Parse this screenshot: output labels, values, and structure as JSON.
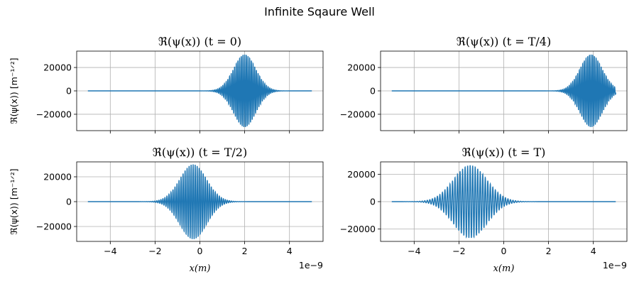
{
  "figure": {
    "suptitle": "Infinite Sqaure Well",
    "line_color": "#1f77b4",
    "grid_color": "#b0b0b0"
  },
  "chart_data": [
    {
      "type": "line",
      "title": "ℜ(ψ(x)) (t = 0)",
      "ylabel": "ℜ(ψ(x)) [m⁻¹ᐟ²]",
      "xlabel": "",
      "x_range": [
        -5e-09,
        5e-09
      ],
      "xlim": [
        -5.5e-09,
        5.5e-09
      ],
      "ylim": [
        -34000,
        34000
      ],
      "xticks": [
        -4e-09,
        -2e-09,
        0,
        2e-09,
        4e-09
      ],
      "xtick_labels": [
        "",
        "",
        "",
        "",
        ""
      ],
      "yticks": [
        -20000,
        0,
        20000
      ],
      "ytick_labels": [
        "−20000",
        "0",
        "20000"
      ],
      "offset_text": "",
      "grid": true,
      "wave": {
        "amplitude": 31000,
        "center": 2e-09,
        "sigma": 5e-10,
        "oscillations": 40
      }
    },
    {
      "type": "line",
      "title": "ℜ(ψ(x)) (t = T/4)",
      "ylabel": "",
      "xlabel": "",
      "x_range": [
        -5e-09,
        5e-09
      ],
      "xlim": [
        -5.5e-09,
        5.5e-09
      ],
      "ylim": [
        -34000,
        34000
      ],
      "xticks": [
        -4e-09,
        -2e-09,
        0,
        2e-09,
        4e-09
      ],
      "xtick_labels": [
        "",
        "",
        "",
        "",
        ""
      ],
      "yticks": [
        -20000,
        0,
        20000
      ],
      "ytick_labels": [
        "−20000",
        "0",
        "20000"
      ],
      "offset_text": "",
      "grid": true,
      "wave": {
        "amplitude": 31000,
        "center": 3.9e-09,
        "sigma": 5e-10,
        "oscillations": 40
      }
    },
    {
      "type": "line",
      "title": "ℜ(ψ(x)) (t = T/2)",
      "ylabel": "ℜ(ψ(x)) [m⁻¹ᐟ²]",
      "xlabel": "x(m)",
      "x_range": [
        -5e-09,
        5e-09
      ],
      "xlim": [
        -5.5e-09,
        5.5e-09
      ],
      "ylim": [
        -32000,
        32000
      ],
      "xticks": [
        -4e-09,
        -2e-09,
        0,
        2e-09,
        4e-09
      ],
      "xtick_labels": [
        "−4",
        "−2",
        "0",
        "2",
        "4"
      ],
      "yticks": [
        -20000,
        0,
        20000
      ],
      "ytick_labels": [
        "−20000",
        "0",
        "20000"
      ],
      "offset_text": "1e−9",
      "grid": true,
      "wave": {
        "amplitude": 30000,
        "center": -3e-10,
        "sigma": 6e-10,
        "oscillations": 40
      }
    },
    {
      "type": "line",
      "title": "ℜ(ψ(x)) (t = T)",
      "ylabel": "",
      "xlabel": "x(m)",
      "x_range": [
        -5e-09,
        5e-09
      ],
      "xlim": [
        -5.5e-09,
        5.5e-09
      ],
      "ylim": [
        -29000,
        29000
      ],
      "xticks": [
        -4e-09,
        -2e-09,
        0,
        2e-09,
        4e-09
      ],
      "xtick_labels": [
        "−4",
        "−2",
        "0",
        "2",
        "4"
      ],
      "yticks": [
        -20000,
        0,
        20000
      ],
      "ytick_labels": [
        "−20000",
        "0",
        "20000"
      ],
      "offset_text": "1e−9",
      "grid": true,
      "wave": {
        "amplitude": 26500,
        "center": -1.5e-09,
        "sigma": 7.5e-10,
        "oscillations": 40
      }
    }
  ]
}
